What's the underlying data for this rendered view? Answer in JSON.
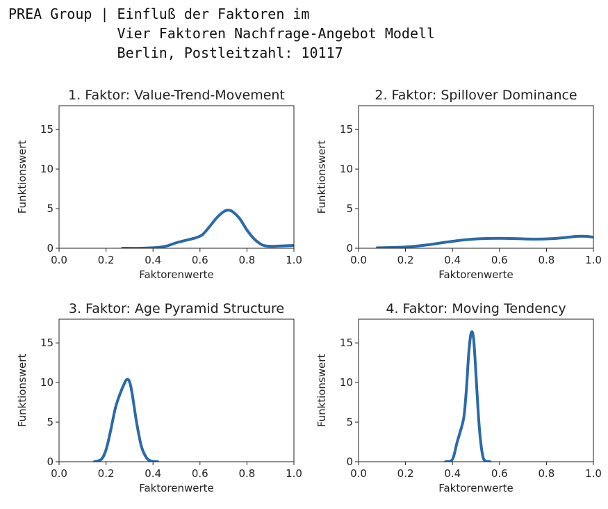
{
  "header": {
    "line1": "PREA Group | Einfluß der Faktoren im",
    "line2": "             Vier Faktoren Nachfrage-Angebot Modell",
    "line3": "             Berlin, Postleitzahl: 10117"
  },
  "colors": {
    "line": "#2b6aa8",
    "axis": "#222222"
  },
  "chart_data": [
    {
      "type": "line",
      "title": "1. Faktor: Value-Trend-Movement",
      "xlabel": "Faktorenwerte",
      "ylabel": "Funktionswert",
      "xlim": [
        0.0,
        1.0
      ],
      "ylim": [
        0,
        18
      ],
      "xticks": [
        "0.0",
        "0.2",
        "0.4",
        "0.6",
        "0.8",
        "1.0"
      ],
      "yticks": [
        "0",
        "5",
        "10",
        "15"
      ],
      "series": [
        {
          "x": [
            0.27,
            0.35,
            0.42,
            0.46,
            0.5,
            0.54,
            0.58,
            0.61,
            0.64,
            0.67,
            0.7,
            0.72,
            0.74,
            0.77,
            0.8,
            0.83,
            0.86,
            0.88,
            0.91,
            0.95,
            1.0
          ],
          "y": [
            0.0,
            0.0,
            0.1,
            0.3,
            0.7,
            1.0,
            1.3,
            1.7,
            2.7,
            3.8,
            4.6,
            4.8,
            4.6,
            3.7,
            2.3,
            1.2,
            0.5,
            0.3,
            0.25,
            0.3,
            0.35
          ]
        }
      ]
    },
    {
      "type": "line",
      "title": "2. Faktor: Spillover Dominance",
      "xlabel": "Faktorenwerte",
      "ylabel": "Funktionswert",
      "xlim": [
        0.0,
        1.0
      ],
      "ylim": [
        0,
        18
      ],
      "xticks": [
        "0.0",
        "0.2",
        "0.4",
        "0.6",
        "0.8",
        "1.0"
      ],
      "yticks": [
        "0",
        "5",
        "10",
        "15"
      ],
      "series": [
        {
          "x": [
            0.08,
            0.15,
            0.22,
            0.3,
            0.38,
            0.45,
            0.52,
            0.6,
            0.68,
            0.75,
            0.82,
            0.88,
            0.93,
            0.97,
            1.0
          ],
          "y": [
            0.05,
            0.1,
            0.2,
            0.45,
            0.8,
            1.05,
            1.2,
            1.25,
            1.2,
            1.15,
            1.2,
            1.35,
            1.5,
            1.5,
            1.4
          ]
        }
      ]
    },
    {
      "type": "line",
      "title": "3. Faktor: Age Pyramid Structure",
      "xlabel": "Faktorenwerte",
      "ylabel": "Funktionswert",
      "xlim": [
        0.0,
        1.0
      ],
      "ylim": [
        0,
        18
      ],
      "xticks": [
        "0.0",
        "0.2",
        "0.4",
        "0.6",
        "0.8",
        "1.0"
      ],
      "yticks": [
        "0",
        "5",
        "10",
        "15"
      ],
      "series": [
        {
          "x": [
            0.15,
            0.18,
            0.2,
            0.22,
            0.24,
            0.26,
            0.28,
            0.29,
            0.3,
            0.31,
            0.33,
            0.35,
            0.37,
            0.39,
            0.42
          ],
          "y": [
            0.0,
            0.3,
            1.5,
            4.0,
            6.8,
            8.6,
            10.0,
            10.4,
            10.1,
            8.8,
            5.0,
            2.0,
            0.6,
            0.1,
            0.0
          ]
        }
      ]
    },
    {
      "type": "line",
      "title": "4. Faktor: Moving Tendency",
      "xlabel": "Faktorenwerte",
      "ylabel": "Funktionswert",
      "xlim": [
        0.0,
        1.0
      ],
      "ylim": [
        0,
        18
      ],
      "xticks": [
        "0.0",
        "0.2",
        "0.4",
        "0.6",
        "0.8",
        "1.0"
      ],
      "yticks": [
        "0",
        "5",
        "10",
        "15"
      ],
      "series": [
        {
          "x": [
            0.37,
            0.4,
            0.42,
            0.44,
            0.45,
            0.46,
            0.47,
            0.48,
            0.49,
            0.5,
            0.51,
            0.52,
            0.53,
            0.54,
            0.56
          ],
          "y": [
            0.0,
            0.3,
            2.5,
            4.5,
            6.0,
            9.5,
            14.0,
            16.3,
            15.5,
            11.0,
            6.0,
            2.5,
            0.6,
            0.1,
            0.0
          ]
        }
      ]
    }
  ]
}
